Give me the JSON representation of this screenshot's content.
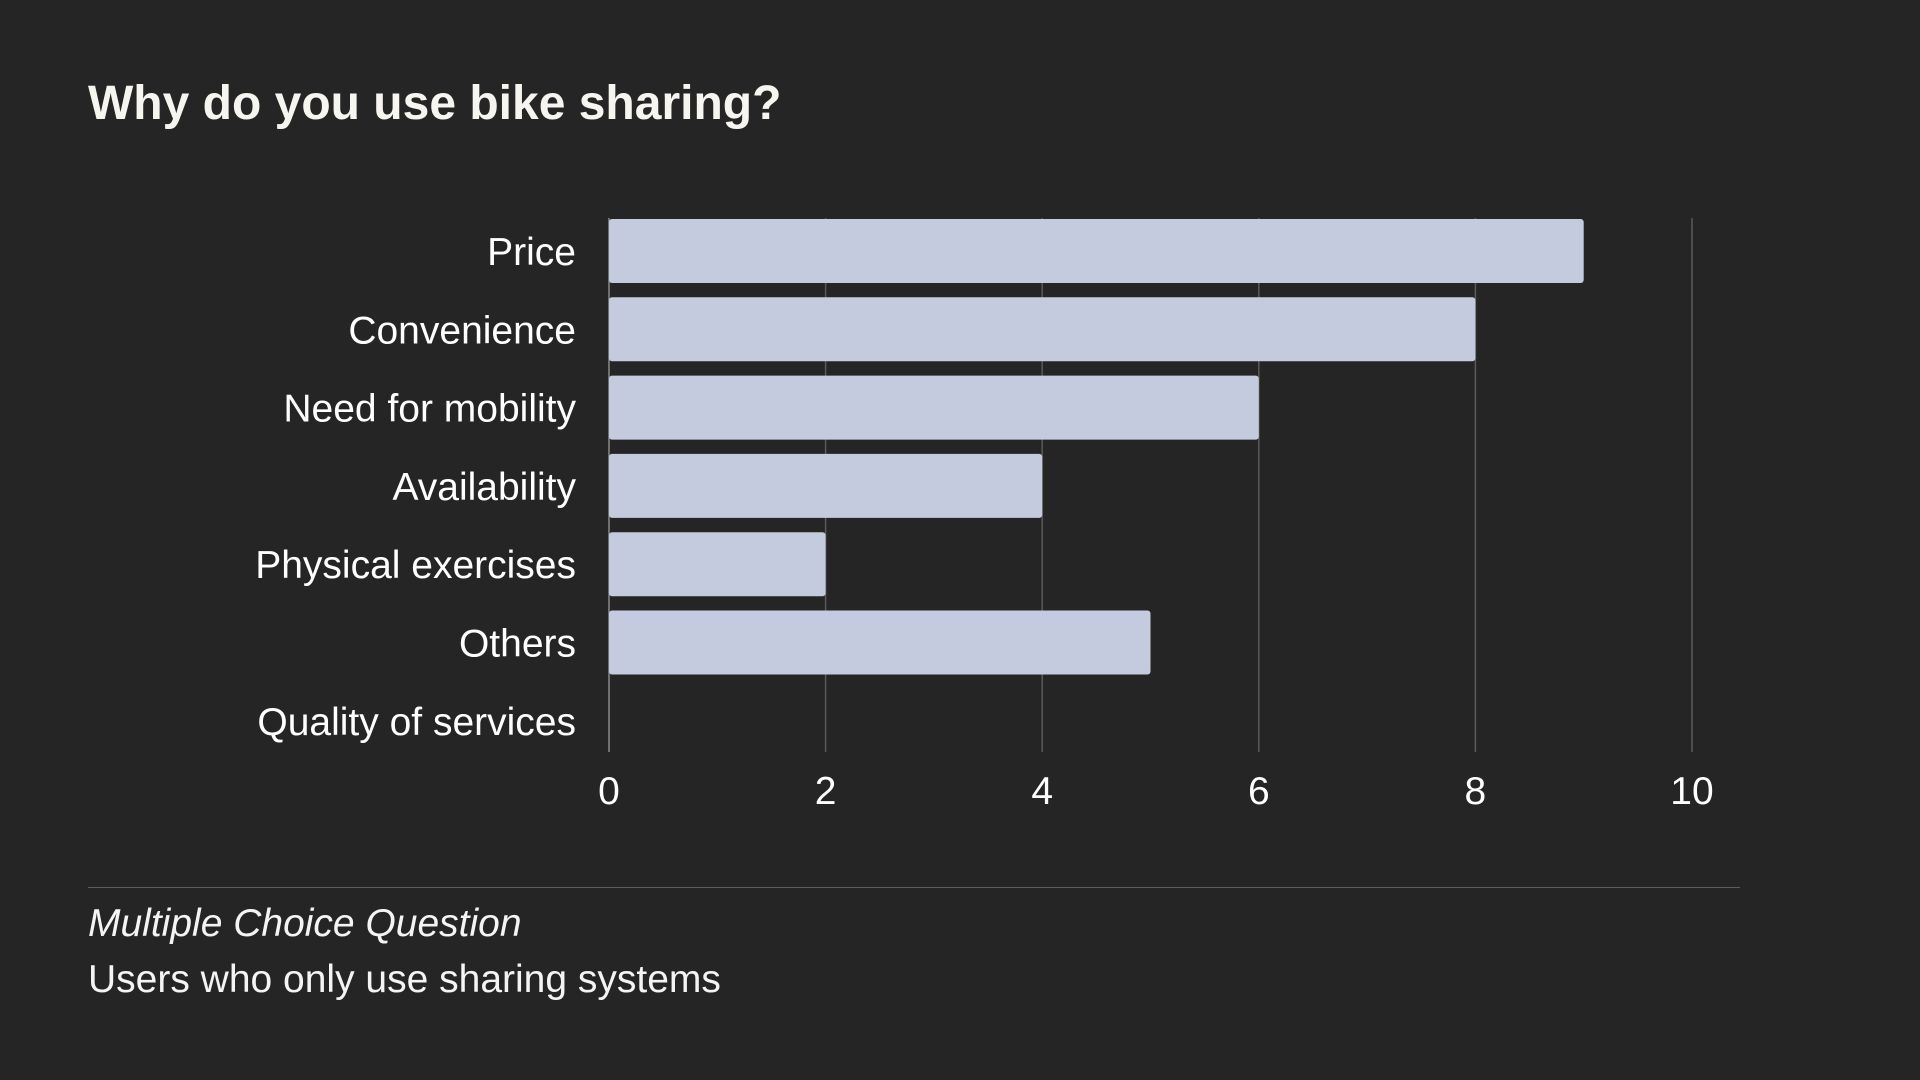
{
  "colors": {
    "background": "#252525",
    "bar": "#c5cbde",
    "grid": "#5a5a5a",
    "text": "#ffffff"
  },
  "chart_data": {
    "type": "bar",
    "orientation": "horizontal",
    "title": "Why do you use bike sharing?",
    "categories": [
      "Price",
      "Convenience",
      "Need for mobility",
      "Availability",
      "Physical exercises",
      "Others",
      "Quality of services"
    ],
    "values": [
      9,
      8,
      6,
      4,
      2,
      5,
      0
    ],
    "xlim": [
      0,
      10
    ],
    "xticks": [
      0,
      2,
      4,
      6,
      8,
      10
    ],
    "xlabel": "",
    "ylabel": "",
    "grid": true,
    "legend": "none"
  },
  "footer": {
    "question_type": "Multiple Choice Question",
    "audience": "Users who only use sharing systems"
  }
}
